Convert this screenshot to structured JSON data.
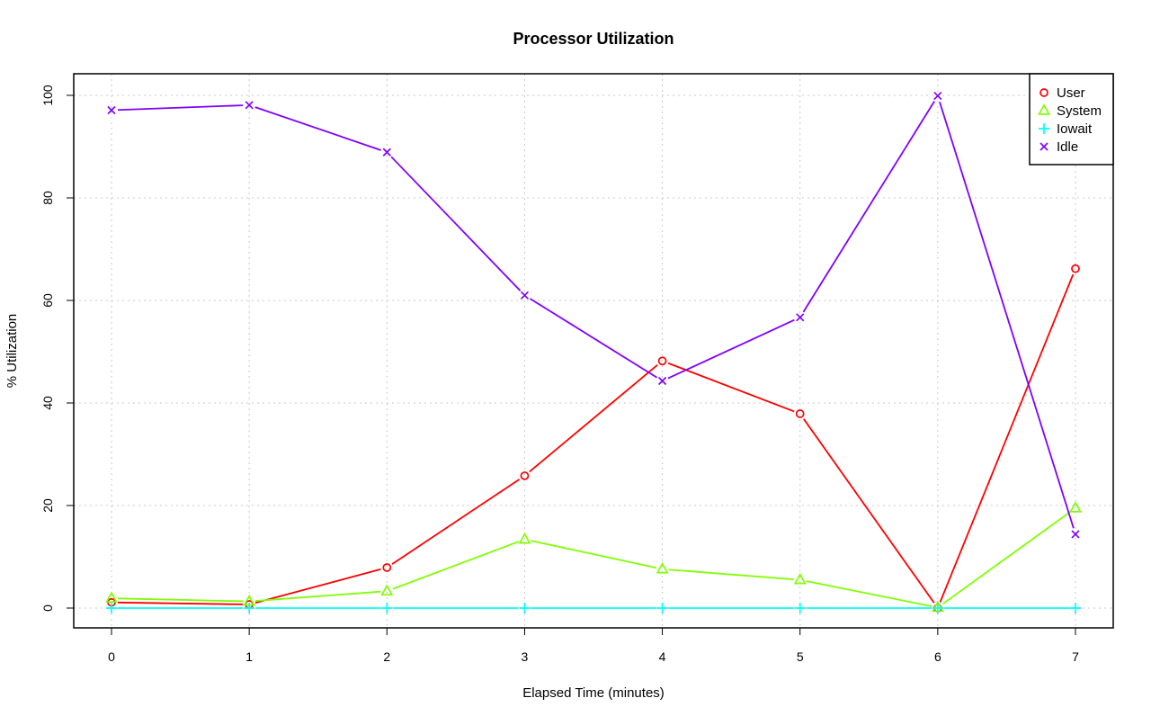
{
  "chart_data": {
    "type": "line",
    "title": "Processor Utilization",
    "xlabel": "Elapsed Time (minutes)",
    "ylabel": "% Utilization",
    "x": [
      0,
      1,
      2,
      3,
      4,
      5,
      6,
      7
    ],
    "xticks": [
      "0",
      "1",
      "2",
      "3",
      "4",
      "5",
      "6",
      "7"
    ],
    "yticks": [
      "0",
      "20",
      "40",
      "60",
      "80",
      "100"
    ],
    "xlim": [
      -0.27,
      7.27
    ],
    "ylim": [
      -3.9,
      104
    ],
    "grid": true,
    "legend_position": "top-right",
    "series": [
      {
        "name": "User",
        "color": "#ff0000",
        "marker": "circle",
        "values": [
          1.1,
          0.7,
          7.9,
          25.8,
          48.2,
          37.9,
          0.0,
          66.2
        ]
      },
      {
        "name": "System",
        "color": "#80ff00",
        "marker": "triangle",
        "values": [
          1.9,
          1.3,
          3.3,
          13.4,
          7.6,
          5.5,
          0.1,
          19.5
        ]
      },
      {
        "name": "Iowait",
        "color": "#00ffff",
        "marker": "plus",
        "values": [
          0,
          0,
          0,
          0,
          0,
          0,
          0,
          0
        ]
      },
      {
        "name": "Idle",
        "color": "#8000ff",
        "marker": "x",
        "values": [
          97.1,
          98.1,
          88.9,
          61.0,
          44.3,
          56.7,
          99.9,
          14.4
        ]
      }
    ]
  }
}
